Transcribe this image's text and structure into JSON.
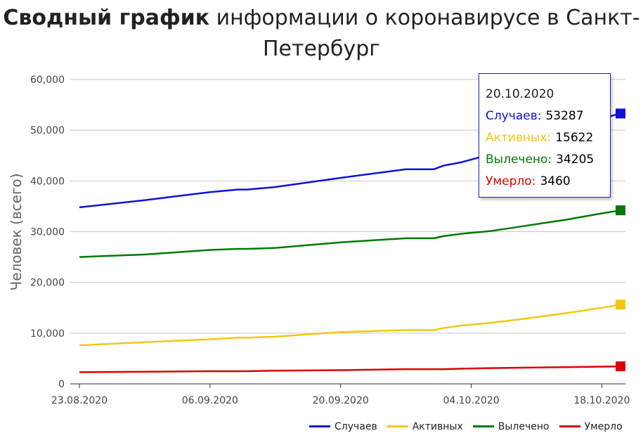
{
  "title": {
    "bold": "Сводный график",
    "rest": "информации о коронавирусе в Санкт-Петербург"
  },
  "tooltip": {
    "date": "20.10.2020",
    "rows": [
      {
        "label": "Случаев:",
        "value": "53287",
        "color": "#1010d8"
      },
      {
        "label": "Активных:",
        "value": "15622",
        "color": "#f2c80f"
      },
      {
        "label": "Вылечено:",
        "value": "34205",
        "color": "#007a00"
      },
      {
        "label": "Умерло:",
        "value": "3460",
        "color": "#e00000"
      }
    ]
  },
  "chart_data": {
    "type": "line",
    "title": "Сводный график информации о коронавирусе в Санкт-Петербург",
    "xlabel": "",
    "ylabel": "Человек (всего)",
    "ylim": [
      0,
      60000
    ],
    "yticks": [
      "0",
      "10,000",
      "20,000",
      "30,000",
      "40,000",
      "50,000",
      "60,000"
    ],
    "xticks": [
      "23.08.2020",
      "06.09.2020",
      "20.09.2020",
      "04.10.2020",
      "18.10.2020"
    ],
    "x_range": [
      "2020-08-23",
      "2020-10-20"
    ],
    "grid": true,
    "legend_position": "bottom-right",
    "x": [
      "2020-08-23",
      "2020-08-30",
      "2020-09-06",
      "2020-09-09",
      "2020-09-10",
      "2020-09-13",
      "2020-09-20",
      "2020-09-27",
      "2020-09-30",
      "2020-10-01",
      "2020-10-03",
      "2020-10-06",
      "2020-10-10",
      "2020-10-14",
      "2020-10-18",
      "2020-10-20"
    ],
    "series": [
      {
        "name": "Случаев",
        "color": "#1010d8",
        "values": [
          34800,
          36200,
          37800,
          38300,
          38300,
          38800,
          40600,
          42300,
          42300,
          43000,
          43700,
          45200,
          47400,
          49800,
          52300,
          53287
        ]
      },
      {
        "name": "Активных",
        "color": "#f2c80f",
        "values": [
          7600,
          8200,
          8800,
          9100,
          9100,
          9300,
          10200,
          10600,
          10600,
          11000,
          11500,
          12000,
          12900,
          13900,
          15000,
          15622
        ]
      },
      {
        "name": "Вылечено",
        "color": "#007a00",
        "values": [
          25000,
          25500,
          26400,
          26600,
          26600,
          26800,
          27900,
          28700,
          28700,
          29100,
          29600,
          30100,
          31200,
          32300,
          33600,
          34205
        ]
      },
      {
        "name": "Умерло",
        "color": "#e00000",
        "values": [
          2300,
          2400,
          2500,
          2500,
          2500,
          2600,
          2700,
          2900,
          2900,
          2900,
          3000,
          3100,
          3200,
          3300,
          3400,
          3460
        ]
      }
    ]
  }
}
